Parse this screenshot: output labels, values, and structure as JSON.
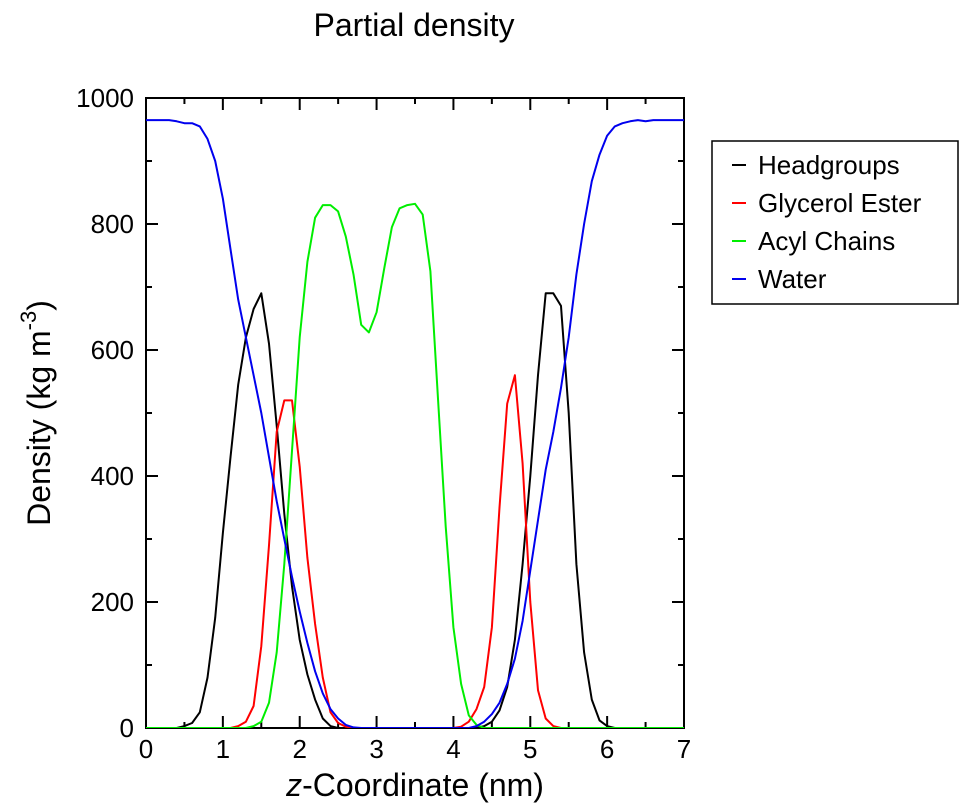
{
  "chart_data": {
    "type": "line",
    "title": "Partial density",
    "xlabel": {
      "italic": "z",
      "rest": "-Coordinate (nm)"
    },
    "ylabel": {
      "base": "Density (kg m",
      "sup": "-3",
      "close": ")"
    },
    "xlim": [
      0,
      7
    ],
    "ylim": [
      0,
      1000
    ],
    "xticks": [
      0,
      1,
      2,
      3,
      4,
      5,
      6,
      7
    ],
    "yticks": [
      0,
      200,
      400,
      600,
      800,
      1000
    ],
    "grid": false,
    "legend_position": "right",
    "series": [
      {
        "name": "Headgroups",
        "color": "#000000",
        "x": [
          0,
          0.1,
          0.2,
          0.3,
          0.4,
          0.5,
          0.6,
          0.7,
          0.8,
          0.9,
          1.0,
          1.1,
          1.2,
          1.3,
          1.4,
          1.5,
          1.6,
          1.7,
          1.8,
          1.9,
          2.0,
          2.1,
          2.2,
          2.3,
          2.4,
          2.5,
          2.6,
          2.7,
          2.8,
          3.0,
          3.5,
          4.0,
          4.3,
          4.4,
          4.5,
          4.6,
          4.7,
          4.8,
          4.9,
          5.0,
          5.1,
          5.2,
          5.3,
          5.4,
          5.5,
          5.6,
          5.7,
          5.8,
          5.9,
          6.0,
          6.1,
          6.2,
          6.3,
          6.4,
          6.5,
          7.0
        ],
        "y": [
          0,
          0,
          0,
          0,
          0,
          3,
          8,
          25,
          80,
          175,
          310,
          430,
          545,
          620,
          665,
          690,
          610,
          480,
          340,
          225,
          140,
          85,
          45,
          15,
          3,
          0,
          0,
          0,
          0,
          0,
          0,
          0,
          0,
          3,
          10,
          28,
          65,
          140,
          260,
          400,
          560,
          690,
          690,
          670,
          500,
          260,
          120,
          45,
          12,
          3,
          0,
          0,
          0,
          0,
          0,
          0
        ]
      },
      {
        "name": "Glycerol Ester",
        "color": "#ff0000",
        "x": [
          0,
          0.5,
          1.0,
          1.1,
          1.2,
          1.3,
          1.4,
          1.5,
          1.6,
          1.7,
          1.8,
          1.9,
          2.0,
          2.1,
          2.2,
          2.3,
          2.4,
          2.5,
          2.6,
          2.7,
          2.8,
          3.0,
          3.5,
          4.0,
          4.1,
          4.2,
          4.3,
          4.4,
          4.5,
          4.6,
          4.7,
          4.8,
          4.9,
          5.0,
          5.1,
          5.2,
          5.3,
          5.4,
          5.5,
          5.6,
          5.7,
          5.8,
          6.0,
          7.0
        ],
        "y": [
          0,
          0,
          0,
          0,
          3,
          10,
          35,
          130,
          290,
          470,
          520,
          520,
          415,
          270,
          165,
          80,
          25,
          8,
          2,
          0,
          0,
          0,
          0,
          0,
          2,
          10,
          30,
          65,
          160,
          350,
          515,
          560,
          420,
          200,
          60,
          15,
          3,
          0,
          0,
          0,
          0,
          0,
          0,
          0
        ]
      },
      {
        "name": "Acyl Chains",
        "color": "#00ee00",
        "x": [
          0,
          1.0,
          1.2,
          1.3,
          1.4,
          1.5,
          1.6,
          1.7,
          1.8,
          1.9,
          2.0,
          2.1,
          2.2,
          2.3,
          2.4,
          2.5,
          2.6,
          2.7,
          2.8,
          2.9,
          3.0,
          3.1,
          3.2,
          3.3,
          3.4,
          3.5,
          3.6,
          3.7,
          3.8,
          3.9,
          4.0,
          4.1,
          4.2,
          4.3,
          4.4,
          4.5,
          4.6,
          4.7,
          4.8,
          4.9,
          5.0,
          5.1,
          5.2,
          5.3,
          5.4,
          5.5,
          5.6,
          7.0
        ],
        "y": [
          0,
          0,
          0,
          0,
          3,
          10,
          40,
          120,
          260,
          440,
          620,
          740,
          810,
          830,
          830,
          820,
          780,
          720,
          640,
          628,
          660,
          730,
          795,
          825,
          830,
          832,
          815,
          725,
          520,
          320,
          160,
          70,
          20,
          5,
          0,
          0,
          0,
          0,
          0,
          0,
          0,
          0,
          0,
          0,
          0,
          0,
          0,
          0
        ],
        "note_x_mapping": "see chart-script"
      },
      {
        "name": "Water",
        "color": "#0000ee",
        "x": [
          0,
          0.1,
          0.2,
          0.3,
          0.4,
          0.5,
          0.6,
          0.7,
          0.8,
          0.9,
          1.0,
          1.1,
          1.2,
          1.3,
          1.4,
          1.5,
          1.6,
          1.7,
          1.8,
          1.9,
          2.0,
          2.1,
          2.2,
          2.3,
          2.4,
          2.5,
          2.6,
          2.7,
          2.8,
          3.0,
          3.5,
          4.0,
          4.2,
          4.3,
          4.4,
          4.5,
          4.6,
          4.7,
          4.8,
          4.9,
          5.0,
          5.1,
          5.2,
          5.3,
          5.4,
          5.5,
          5.6,
          5.7,
          5.8,
          5.9,
          6.0,
          6.1,
          6.2,
          6.3,
          6.4,
          6.5,
          6.6,
          6.7,
          6.8,
          7.0
        ],
        "y": [
          965,
          965,
          965,
          965,
          963,
          960,
          960,
          955,
          935,
          900,
          840,
          760,
          680,
          620,
          560,
          500,
          430,
          360,
          300,
          240,
          185,
          135,
          90,
          55,
          30,
          15,
          5,
          1,
          0,
          0,
          0,
          0,
          0,
          3,
          10,
          22,
          40,
          70,
          110,
          170,
          250,
          330,
          410,
          470,
          540,
          620,
          720,
          800,
          868,
          910,
          940,
          955,
          960,
          963,
          965,
          963,
          965,
          965,
          965,
          965
        ]
      }
    ]
  }
}
